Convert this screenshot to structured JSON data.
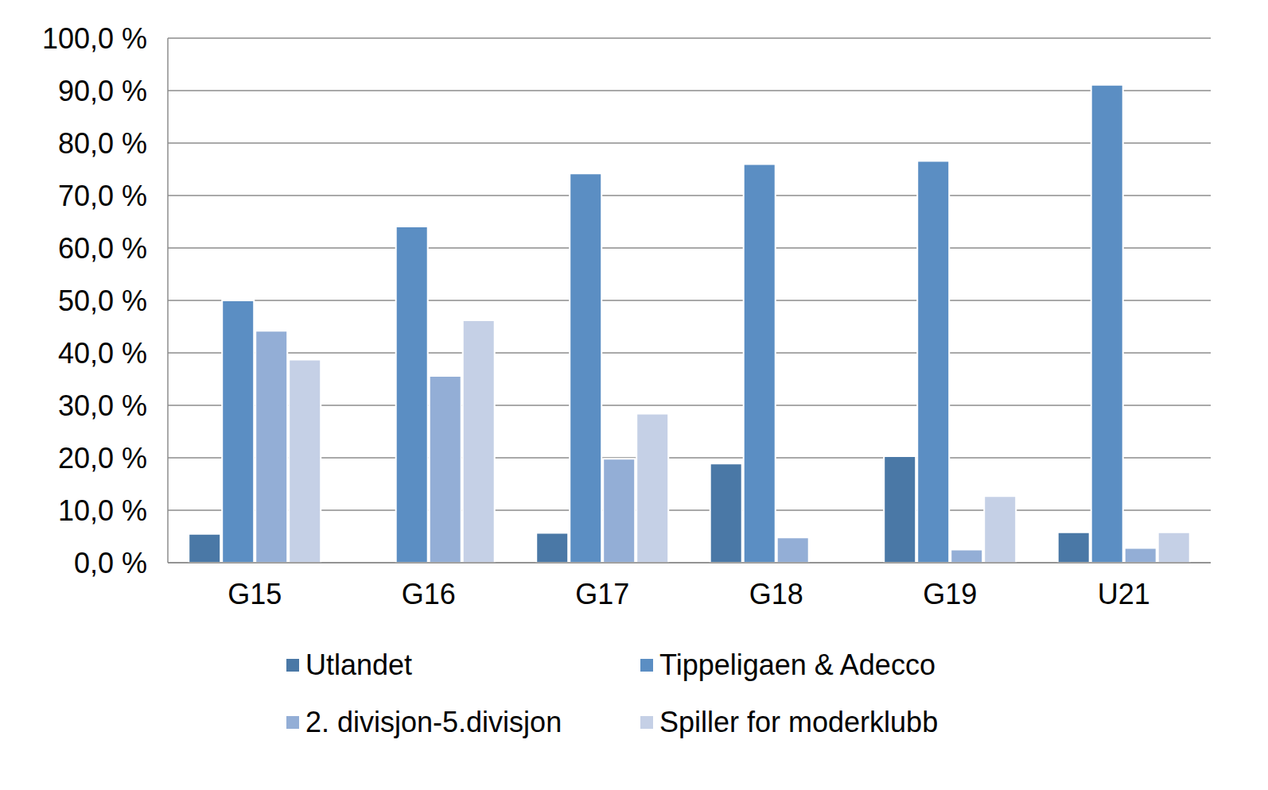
{
  "chart_data": {
    "type": "bar",
    "categories": [
      "G15",
      "G16",
      "G17",
      "G18",
      "G19",
      "U21"
    ],
    "series": [
      {
        "name": "Utlandet",
        "color": "#4a78a6",
        "values": [
          5.5,
          0,
          5.7,
          18.9,
          20.3,
          5.8
        ]
      },
      {
        "name": "Tippeligaen & Adecco",
        "color": "#5b8ec3",
        "values": [
          50.0,
          64.1,
          74.2,
          76.0,
          76.6,
          91.1
        ]
      },
      {
        "name": "2. divisjon-5.divisjon",
        "color": "#93aed6",
        "values": [
          44.2,
          35.6,
          19.8,
          4.8,
          2.5,
          2.8
        ]
      },
      {
        "name": "Spiller for moderklubb",
        "color": "#c5d0e6",
        "values": [
          38.7,
          46.2,
          28.4,
          0,
          12.7,
          5.8
        ]
      }
    ],
    "ylim": [
      0,
      100
    ],
    "yticks": [
      {
        "value": 0,
        "label": "0,0 %"
      },
      {
        "value": 10,
        "label": "10,0 %"
      },
      {
        "value": 20,
        "label": "20,0 %"
      },
      {
        "value": 30,
        "label": "30,0 %"
      },
      {
        "value": 40,
        "label": "40,0 %"
      },
      {
        "value": 50,
        "label": "50,0 %"
      },
      {
        "value": 60,
        "label": "60,0 %"
      },
      {
        "value": 70,
        "label": "70,0 %"
      },
      {
        "value": 80,
        "label": "80,0 %"
      },
      {
        "value": 90,
        "label": "90,0 %"
      },
      {
        "value": 100,
        "label": "100,0 %"
      }
    ],
    "grid": true,
    "legend": "bottom"
  }
}
